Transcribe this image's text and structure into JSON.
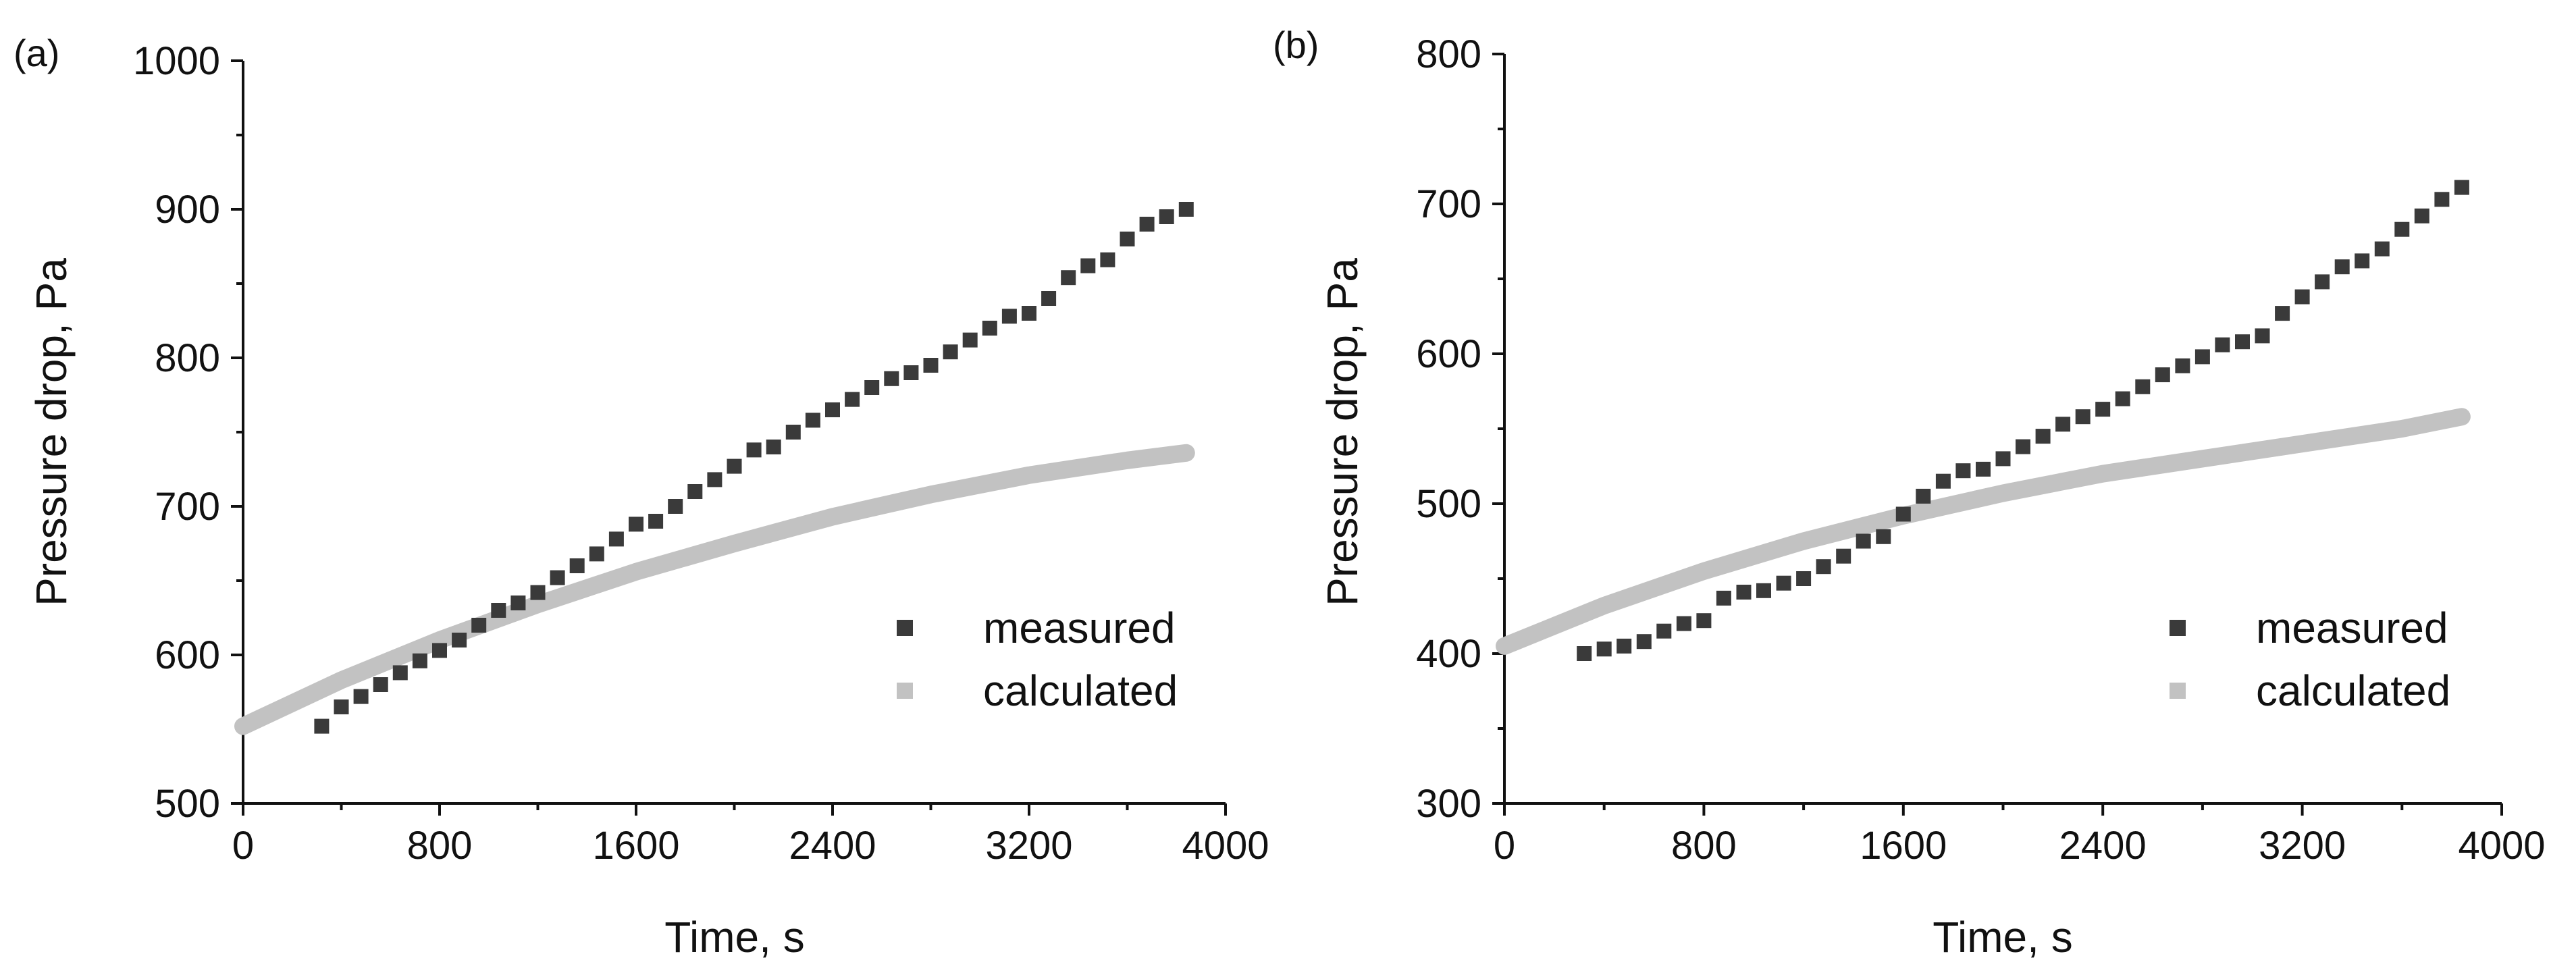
{
  "figure": {
    "panel_labels": [
      "(a)",
      "(b)"
    ]
  },
  "chart_data": [
    {
      "type": "scatter",
      "panel": "(a)",
      "xlabel": "Time, s",
      "ylabel": "Pressure drop, Pa",
      "xlim": [
        0,
        4000
      ],
      "ylim": [
        500,
        1000
      ],
      "xticks": [
        0,
        800,
        1600,
        2400,
        3200,
        4000
      ],
      "yticks": [
        500,
        600,
        700,
        800,
        900,
        1000
      ],
      "legend": {
        "placement": "bottom-right",
        "entries": [
          "measured",
          "calculated"
        ]
      },
      "series": [
        {
          "name": "measured",
          "marker": "square",
          "color": "#3a3a3a",
          "x": [
            320,
            400,
            480,
            560,
            640,
            720,
            800,
            880,
            960,
            1040,
            1120,
            1200,
            1280,
            1360,
            1440,
            1520,
            1600,
            1680,
            1760,
            1840,
            1920,
            2000,
            2080,
            2160,
            2240,
            2320,
            2400,
            2480,
            2560,
            2640,
            2720,
            2800,
            2880,
            2960,
            3040,
            3120,
            3200,
            3280,
            3360,
            3440,
            3520,
            3600,
            3680,
            3760,
            3840
          ],
          "y": [
            552,
            565,
            572,
            580,
            588,
            596,
            603,
            610,
            620,
            630,
            635,
            642,
            652,
            660,
            668,
            678,
            688,
            690,
            700,
            710,
            718,
            727,
            738,
            740,
            750,
            758,
            765,
            772,
            780,
            786,
            790,
            795,
            804,
            812,
            820,
            828,
            830,
            840,
            854,
            862,
            866,
            880,
            890,
            895,
            900
          ]
        },
        {
          "name": "calculated",
          "marker": "line",
          "color": "#c2c2c2",
          "x": [
            0,
            400,
            800,
            1200,
            1600,
            2000,
            2400,
            2800,
            3200,
            3600,
            3840
          ],
          "y": [
            552,
            583,
            610,
            634,
            656,
            675,
            693,
            708,
            721,
            731,
            736
          ]
        }
      ]
    },
    {
      "type": "scatter",
      "panel": "(b)",
      "xlabel": "Time, s",
      "ylabel": "Pressure drop, Pa",
      "xlim": [
        0,
        4000
      ],
      "ylim": [
        300,
        800
      ],
      "xticks": [
        0,
        800,
        1600,
        2400,
        3200,
        4000
      ],
      "yticks": [
        300,
        400,
        500,
        600,
        700,
        800
      ],
      "legend": {
        "placement": "bottom-right",
        "entries": [
          "measured",
          "calculated"
        ]
      },
      "series": [
        {
          "name": "measured",
          "marker": "square",
          "color": "#3a3a3a",
          "x": [
            320,
            400,
            480,
            560,
            640,
            720,
            800,
            880,
            960,
            1040,
            1120,
            1200,
            1280,
            1360,
            1440,
            1520,
            1600,
            1680,
            1760,
            1840,
            1920,
            2000,
            2080,
            2160,
            2240,
            2320,
            2400,
            2480,
            2560,
            2640,
            2720,
            2800,
            2880,
            2960,
            3040,
            3120,
            3200,
            3280,
            3360,
            3440,
            3520,
            3600,
            3680,
            3760,
            3840
          ],
          "y": [
            400,
            403,
            405,
            408,
            415,
            420,
            422,
            437,
            441,
            442,
            447,
            450,
            458,
            465,
            475,
            478,
            493,
            505,
            515,
            522,
            523,
            530,
            538,
            545,
            553,
            558,
            563,
            570,
            578,
            586,
            592,
            598,
            606,
            608,
            612,
            627,
            638,
            648,
            658,
            662,
            670,
            683,
            692,
            703,
            711
          ]
        },
        {
          "name": "calculated",
          "marker": "line",
          "color": "#c2c2c2",
          "x": [
            0,
            400,
            800,
            1200,
            1600,
            2000,
            2400,
            2800,
            3200,
            3600,
            3840
          ],
          "y": [
            405,
            432,
            455,
            475,
            492,
            507,
            520,
            530,
            540,
            550,
            558
          ]
        }
      ]
    }
  ]
}
